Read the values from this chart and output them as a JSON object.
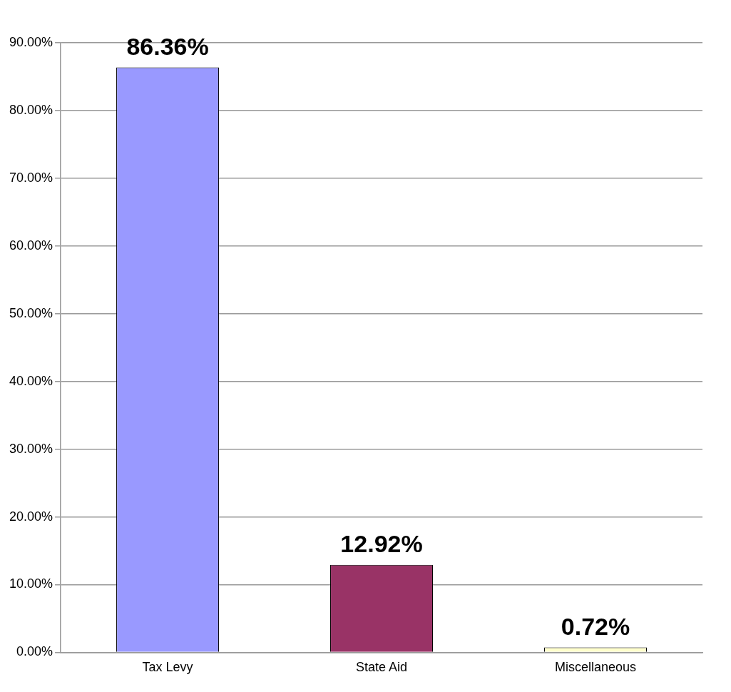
{
  "chart_data": {
    "type": "bar",
    "categories": [
      "Tax Levy",
      "State Aid",
      "Miscellaneous"
    ],
    "values": [
      86.36,
      12.92,
      0.72
    ],
    "colors": [
      "#9999ff",
      "#993366",
      "#ffffcc"
    ],
    "value_labels": [
      "86.36%",
      "12.92%",
      "0.72%"
    ],
    "ylim": [
      0,
      90
    ],
    "yticks": [
      {
        "value": 0,
        "label": "0.00%"
      },
      {
        "value": 10,
        "label": "10.00%"
      },
      {
        "value": 20,
        "label": "20.00%"
      },
      {
        "value": 30,
        "label": "30.00%"
      },
      {
        "value": 40,
        "label": "40.00%"
      },
      {
        "value": 50,
        "label": "50.00%"
      },
      {
        "value": 60,
        "label": "60.00%"
      },
      {
        "value": 70,
        "label": "70.00%"
      },
      {
        "value": 80,
        "label": "80.00%"
      },
      {
        "value": 90,
        "label": "90.00%"
      }
    ],
    "grid": "y",
    "legend": false
  }
}
